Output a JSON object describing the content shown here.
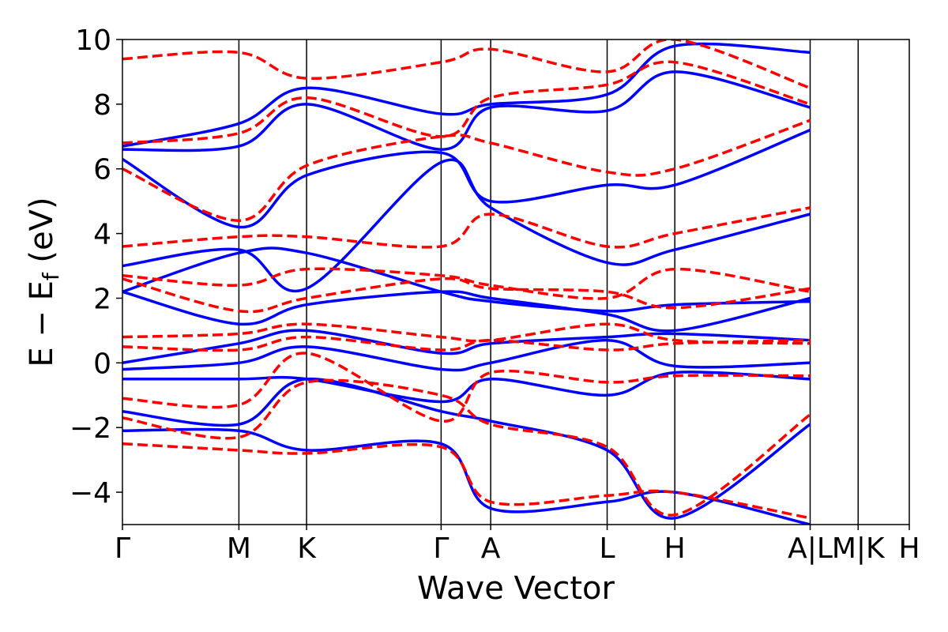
{
  "chart_data": {
    "type": "line",
    "title": "",
    "xlabel": "Wave Vector",
    "ylabel": "E − E",
    "ylabel_sub": "f",
    "ylabel_unit": " (eV)",
    "ylim": [
      -5,
      10
    ],
    "yticks": [
      -4,
      -2,
      0,
      2,
      4,
      6,
      8,
      10
    ],
    "ytick_labels": [
      "−4",
      "−2",
      "0",
      "2",
      "4",
      "6",
      "8",
      "10"
    ],
    "xlim": [
      0,
      1
    ],
    "high_symmetry_points": [
      {
        "label": "Γ",
        "x": 0.0
      },
      {
        "label": "M",
        "x": 0.148
      },
      {
        "label": "K",
        "x": 0.234
      },
      {
        "label": "Γ",
        "x": 0.405
      },
      {
        "label": "A",
        "x": 0.468
      },
      {
        "label": "L",
        "x": 0.616
      },
      {
        "label": "H",
        "x": 0.702
      },
      {
        "label": "A|L",
        "x": 0.874
      },
      {
        "label": "M|K",
        "x": 0.935
      },
      {
        "label": "H",
        "x": 1.0
      }
    ],
    "series": [
      {
        "name": "blue",
        "color": "#0000ff",
        "style": "solid",
        "bands": [
          [
            [
              0,
              -2.1
            ],
            [
              0.148,
              -2.1
            ],
            [
              0.234,
              -2.7
            ],
            [
              0.405,
              -2.5
            ],
            [
              0.468,
              -4.5
            ],
            [
              0.616,
              -4.3
            ],
            [
              0.702,
              -4.0
            ],
            [
              0.874,
              -5.0
            ]
          ],
          [
            [
              0,
              -1.5
            ],
            [
              0.148,
              -1.9
            ],
            [
              0.234,
              -0.5
            ],
            [
              0.405,
              -1.5
            ],
            [
              0.468,
              -1.8
            ],
            [
              0.616,
              -2.7
            ],
            [
              0.702,
              -4.8
            ],
            [
              0.874,
              -1.9
            ]
          ],
          [
            [
              0,
              -0.5
            ],
            [
              0.148,
              -0.5
            ],
            [
              0.234,
              -0.5
            ],
            [
              0.405,
              -1.2
            ],
            [
              0.468,
              -0.5
            ],
            [
              0.616,
              -1.0
            ],
            [
              0.702,
              -0.3
            ],
            [
              0.874,
              -0.5
            ]
          ],
          [
            [
              0,
              -0.2
            ],
            [
              0.148,
              0.0
            ],
            [
              0.234,
              0.5
            ],
            [
              0.405,
              -0.2
            ],
            [
              0.468,
              0.0
            ],
            [
              0.616,
              0.7
            ],
            [
              0.702,
              -0.1
            ],
            [
              0.874,
              0.0
            ]
          ],
          [
            [
              0,
              0.0
            ],
            [
              0.148,
              0.6
            ],
            [
              0.234,
              1.0
            ],
            [
              0.405,
              0.3
            ],
            [
              0.468,
              0.6
            ],
            [
              0.616,
              0.8
            ],
            [
              0.702,
              0.9
            ],
            [
              0.874,
              0.7
            ]
          ],
          [
            [
              0,
              2.2
            ],
            [
              0.148,
              1.2
            ],
            [
              0.234,
              1.8
            ],
            [
              0.405,
              2.2
            ],
            [
              0.468,
              2.0
            ],
            [
              0.616,
              1.5
            ],
            [
              0.702,
              1.0
            ],
            [
              0.874,
              2.0
            ]
          ],
          [
            [
              0,
              2.2
            ],
            [
              0.148,
              3.4
            ],
            [
              0.234,
              3.4
            ],
            [
              0.405,
              2.2
            ],
            [
              0.468,
              1.9
            ],
            [
              0.616,
              1.6
            ],
            [
              0.702,
              1.8
            ],
            [
              0.874,
              1.9
            ]
          ],
          [
            [
              0,
              3.0
            ],
            [
              0.148,
              3.5
            ],
            [
              0.234,
              2.3
            ],
            [
              0.405,
              6.2
            ],
            [
              0.468,
              4.8
            ],
            [
              0.616,
              3.1
            ],
            [
              0.702,
              3.5
            ],
            [
              0.874,
              4.6
            ]
          ],
          [
            [
              0,
              6.3
            ],
            [
              0.148,
              4.2
            ],
            [
              0.234,
              5.8
            ],
            [
              0.405,
              6.5
            ],
            [
              0.468,
              5.0
            ],
            [
              0.616,
              5.5
            ],
            [
              0.702,
              5.5
            ],
            [
              0.874,
              7.2
            ]
          ],
          [
            [
              0,
              6.6
            ],
            [
              0.148,
              6.7
            ],
            [
              0.234,
              8.0
            ],
            [
              0.405,
              6.6
            ],
            [
              0.468,
              7.9
            ],
            [
              0.616,
              7.8
            ],
            [
              0.702,
              9.0
            ],
            [
              0.874,
              7.9
            ]
          ],
          [
            [
              0,
              6.7
            ],
            [
              0.148,
              7.4
            ],
            [
              0.234,
              8.5
            ],
            [
              0.405,
              7.7
            ],
            [
              0.468,
              8.0
            ],
            [
              0.616,
              8.3
            ],
            [
              0.702,
              9.8
            ],
            [
              0.874,
              9.6
            ]
          ]
        ]
      },
      {
        "name": "red",
        "color": "#ff0000",
        "style": "dashed",
        "bands": [
          [
            [
              0,
              -2.5
            ],
            [
              0.148,
              -2.7
            ],
            [
              0.234,
              -2.8
            ],
            [
              0.405,
              -2.6
            ],
            [
              0.468,
              -4.3
            ],
            [
              0.616,
              -4.1
            ],
            [
              0.702,
              -4.0
            ],
            [
              0.874,
              -4.8
            ]
          ],
          [
            [
              0,
              -1.7
            ],
            [
              0.148,
              -2.3
            ],
            [
              0.234,
              -0.6
            ],
            [
              0.405,
              -1.0
            ],
            [
              0.468,
              -1.9
            ],
            [
              0.616,
              -2.6
            ],
            [
              0.702,
              -4.7
            ],
            [
              0.874,
              -1.6
            ]
          ],
          [
            [
              0,
              -1.1
            ],
            [
              0.148,
              -1.3
            ],
            [
              0.234,
              0.3
            ],
            [
              0.405,
              -1.8
            ],
            [
              0.468,
              -0.3
            ],
            [
              0.616,
              -0.6
            ],
            [
              0.702,
              -0.4
            ],
            [
              0.874,
              -0.4
            ]
          ],
          [
            [
              0,
              0.5
            ],
            [
              0.148,
              0.4
            ],
            [
              0.234,
              0.8
            ],
            [
              0.405,
              0.4
            ],
            [
              0.468,
              0.7
            ],
            [
              0.616,
              0.4
            ],
            [
              0.702,
              0.6
            ],
            [
              0.874,
              0.7
            ]
          ],
          [
            [
              0,
              0.8
            ],
            [
              0.148,
              0.9
            ],
            [
              0.234,
              1.2
            ],
            [
              0.405,
              0.8
            ],
            [
              0.468,
              0.7
            ],
            [
              0.616,
              1.2
            ],
            [
              0.702,
              0.7
            ],
            [
              0.874,
              0.6
            ]
          ],
          [
            [
              0,
              2.6
            ],
            [
              0.148,
              1.6
            ],
            [
              0.234,
              2.0
            ],
            [
              0.405,
              2.6
            ],
            [
              0.468,
              2.3
            ],
            [
              0.616,
              2.2
            ],
            [
              0.702,
              1.7
            ],
            [
              0.874,
              2.3
            ]
          ],
          [
            [
              0,
              2.7
            ],
            [
              0.148,
              2.4
            ],
            [
              0.234,
              2.9
            ],
            [
              0.405,
              2.7
            ],
            [
              0.468,
              2.4
            ],
            [
              0.616,
              2.0
            ],
            [
              0.702,
              2.9
            ],
            [
              0.874,
              2.2
            ]
          ],
          [
            [
              0,
              3.6
            ],
            [
              0.148,
              3.9
            ],
            [
              0.234,
              3.9
            ],
            [
              0.405,
              3.6
            ],
            [
              0.468,
              4.6
            ],
            [
              0.616,
              3.6
            ],
            [
              0.702,
              4.0
            ],
            [
              0.874,
              4.8
            ]
          ],
          [
            [
              0,
              6.0
            ],
            [
              0.148,
              4.4
            ],
            [
              0.234,
              6.1
            ],
            [
              0.405,
              7.0
            ],
            [
              0.468,
              6.8
            ],
            [
              0.616,
              5.9
            ],
            [
              0.702,
              6.0
            ],
            [
              0.874,
              7.5
            ]
          ],
          [
            [
              0,
              6.8
            ],
            [
              0.148,
              7.1
            ],
            [
              0.234,
              8.2
            ],
            [
              0.405,
              7.0
            ],
            [
              0.468,
              8.2
            ],
            [
              0.616,
              8.6
            ],
            [
              0.702,
              9.3
            ],
            [
              0.874,
              8.0
            ]
          ],
          [
            [
              0,
              9.4
            ],
            [
              0.148,
              9.6
            ],
            [
              0.234,
              8.8
            ],
            [
              0.405,
              9.3
            ],
            [
              0.468,
              9.7
            ],
            [
              0.616,
              9.0
            ],
            [
              0.702,
              10.0
            ],
            [
              0.874,
              8.5
            ]
          ]
        ]
      }
    ]
  }
}
